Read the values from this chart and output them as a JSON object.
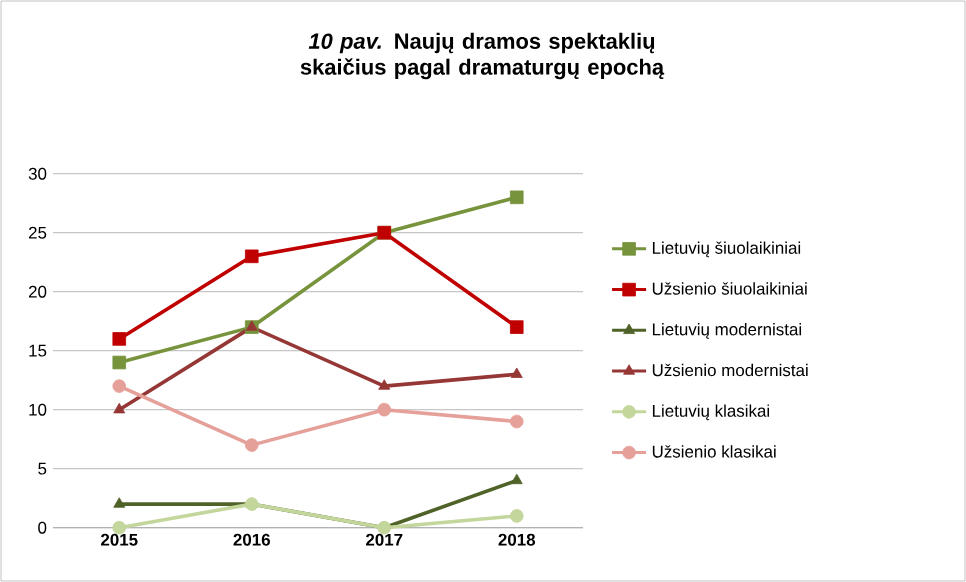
{
  "chart_data": {
    "type": "line",
    "title": "*10 pav.* Naujų dramos spektaklių skaičius pagal dramaturgų epochą",
    "categories": [
      "2015",
      "2016",
      "2017",
      "2018"
    ],
    "ylim": [
      0,
      30
    ],
    "yticks": [
      0,
      5,
      10,
      15,
      20,
      25,
      30
    ],
    "grid": "y",
    "legend": "right",
    "line_style": "solid",
    "series": [
      {
        "name": "Lietuvių šiuolaikiniai",
        "color": "#77933c",
        "marker": "square",
        "values": [
          14,
          17,
          25,
          28
        ]
      },
      {
        "name": "Užsienio šiuolaikiniai",
        "color": "#c00000",
        "marker": "square",
        "values": [
          16,
          23,
          25,
          17
        ]
      },
      {
        "name": "Lietuvių modernistai",
        "color": "#4f6228",
        "marker": "triangle",
        "values": [
          2,
          2,
          0,
          4
        ]
      },
      {
        "name": "Užsienio modernistai",
        "color": "#953735",
        "marker": "triangle",
        "values": [
          10,
          17,
          12,
          13
        ]
      },
      {
        "name": "Lietuvių klasikai",
        "color": "#c3d69b",
        "marker": "circle",
        "values": [
          0,
          2,
          0,
          1
        ]
      },
      {
        "name": "Užsienio klasikai",
        "color": "#e6a09a",
        "marker": "circle",
        "values": [
          12,
          7,
          10,
          9
        ]
      }
    ]
  }
}
